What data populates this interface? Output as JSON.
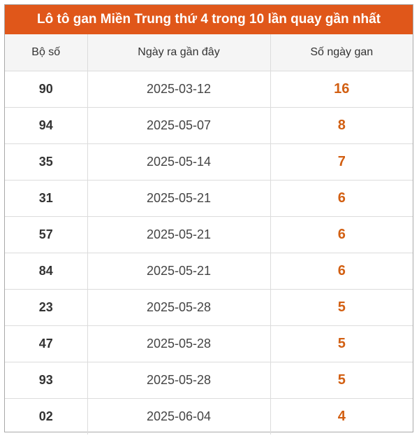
{
  "title": "Lô tô gan Miền Trung thứ 4 trong 10 lần quay gần nhất",
  "colors": {
    "header_bg": "#e0571a",
    "days_text": "#d25f12"
  },
  "columns": [
    "Bộ số",
    "Ngày ra gần đây",
    "Số ngày gan"
  ],
  "rows": [
    {
      "number": "90",
      "date": "2025-03-12",
      "days": "16"
    },
    {
      "number": "94",
      "date": "2025-05-07",
      "days": "8"
    },
    {
      "number": "35",
      "date": "2025-05-14",
      "days": "7"
    },
    {
      "number": "31",
      "date": "2025-05-21",
      "days": "6"
    },
    {
      "number": "57",
      "date": "2025-05-21",
      "days": "6"
    },
    {
      "number": "84",
      "date": "2025-05-21",
      "days": "6"
    },
    {
      "number": "23",
      "date": "2025-05-28",
      "days": "5"
    },
    {
      "number": "47",
      "date": "2025-05-28",
      "days": "5"
    },
    {
      "number": "93",
      "date": "2025-05-28",
      "days": "5"
    },
    {
      "number": "02",
      "date": "2025-06-04",
      "days": "4"
    }
  ]
}
